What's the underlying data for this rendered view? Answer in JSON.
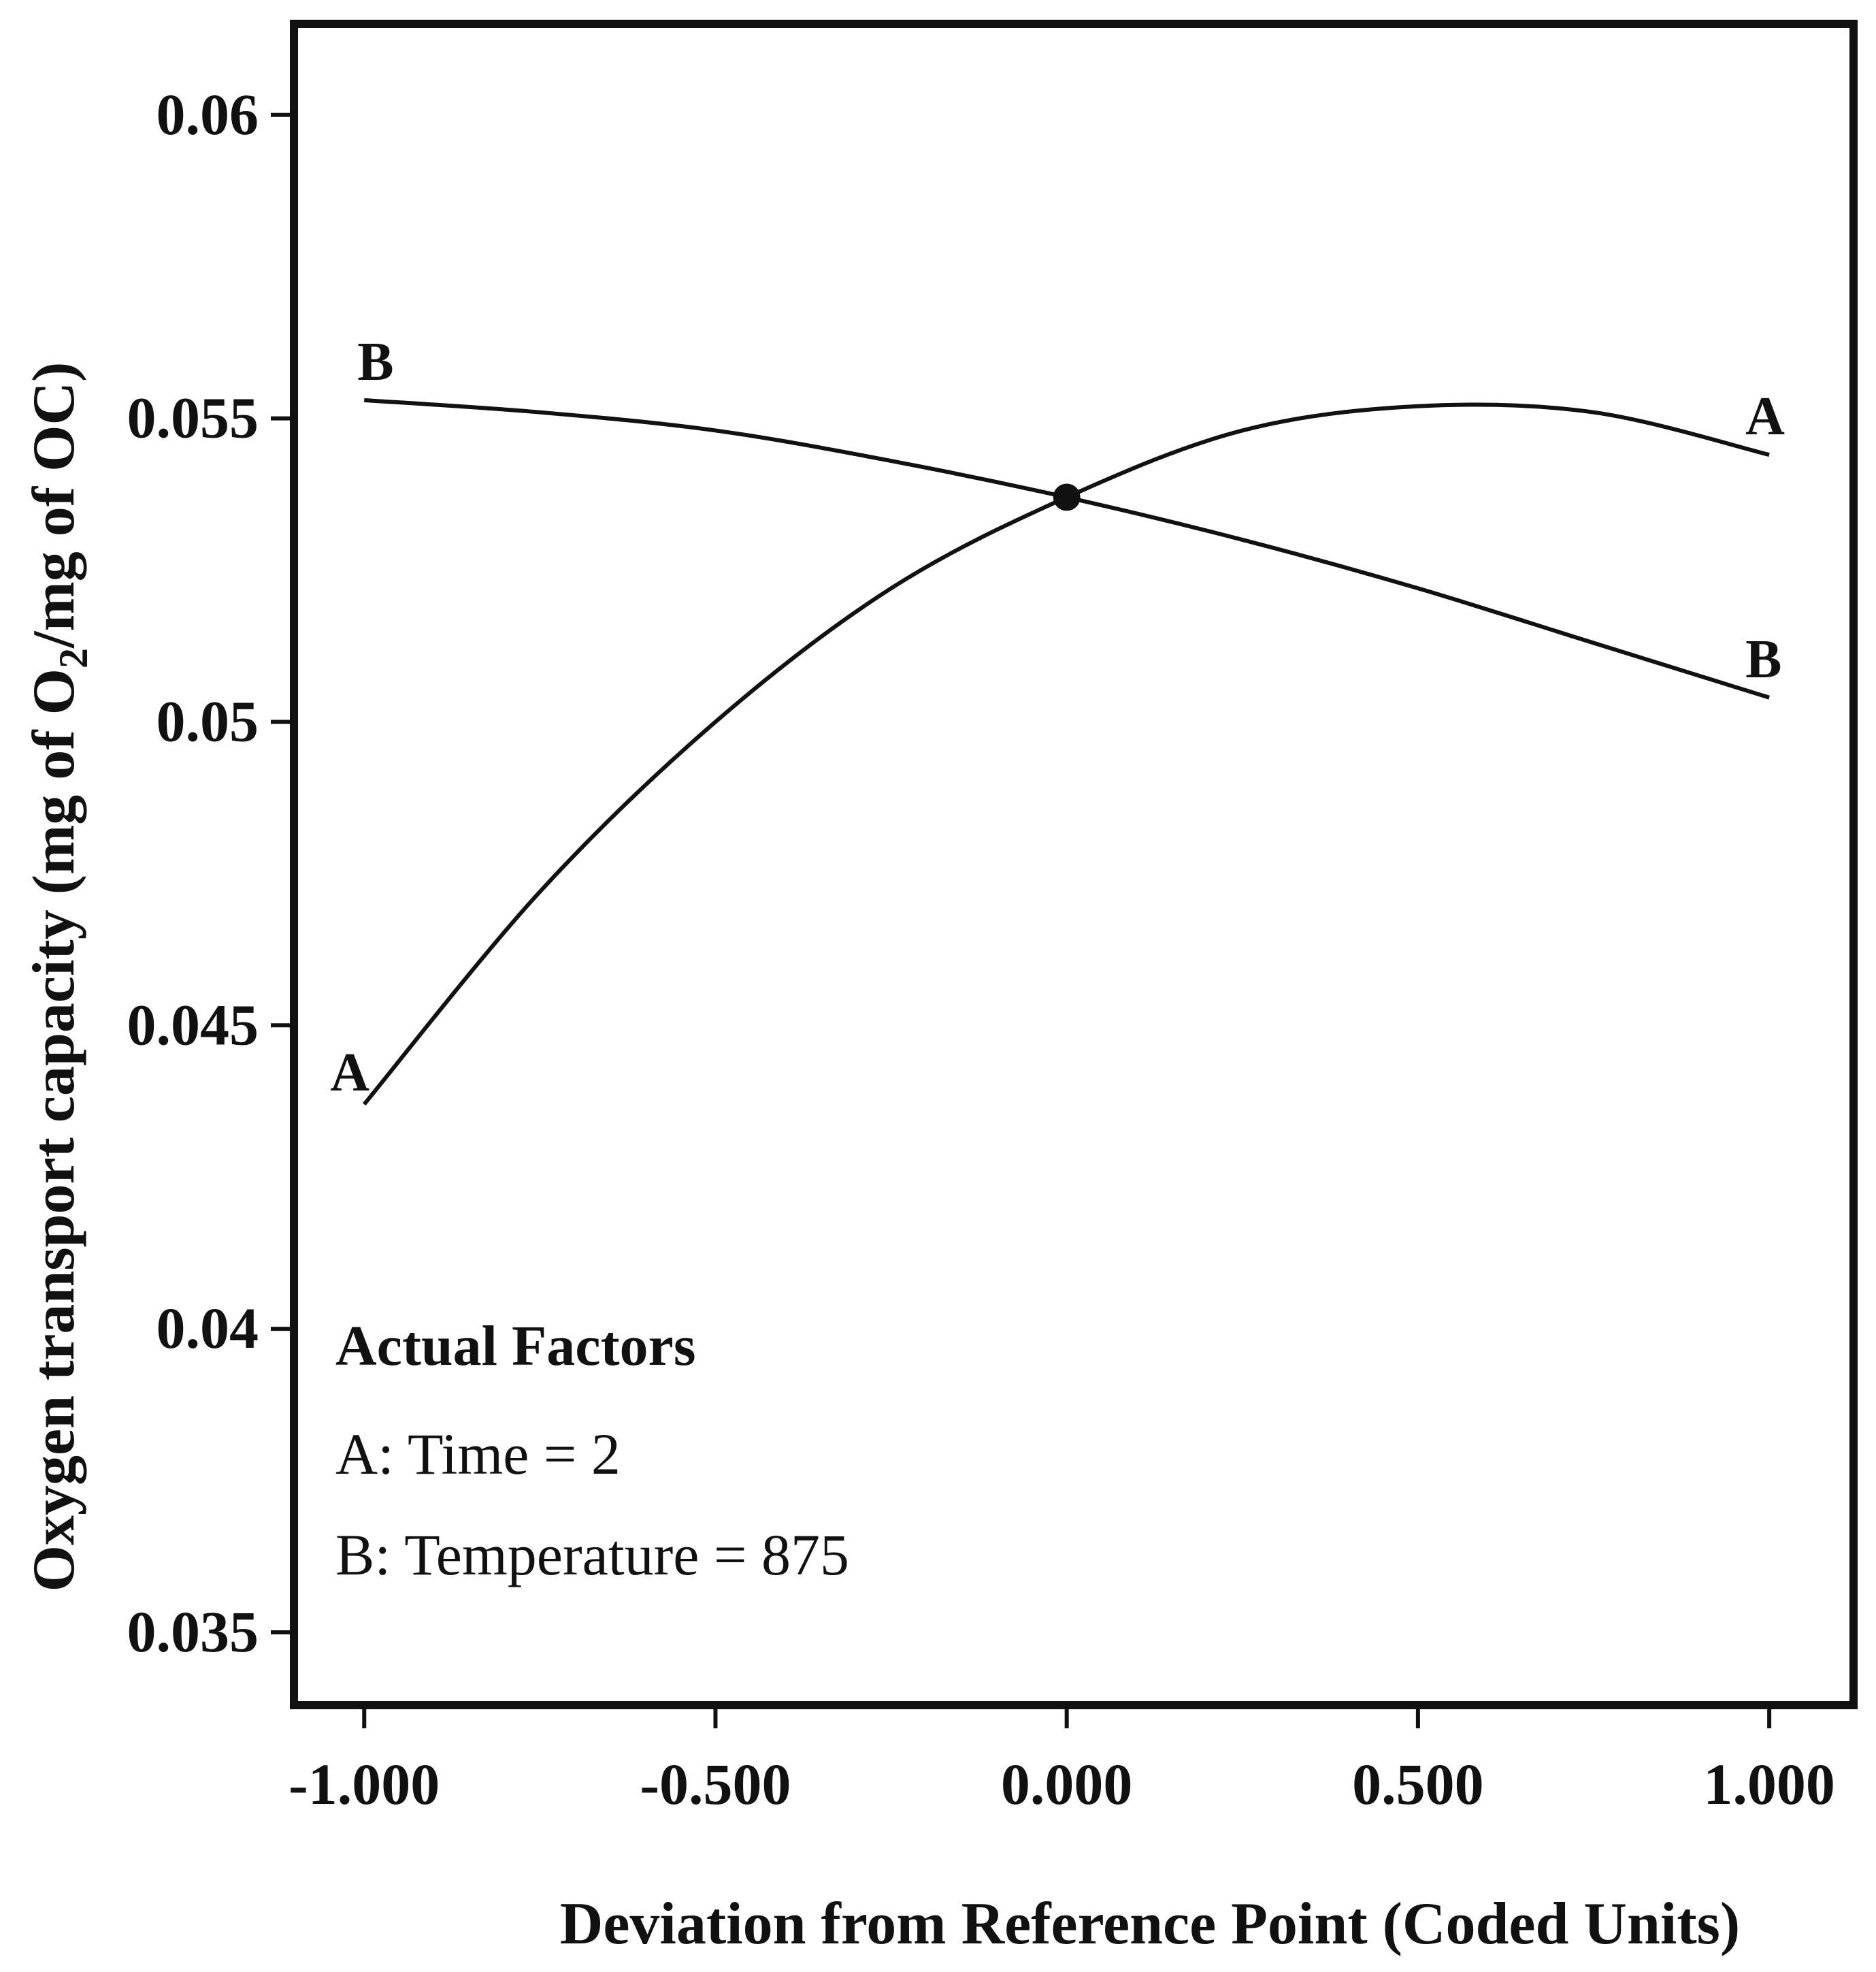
{
  "chart_data": {
    "type": "line",
    "title": "",
    "xlabel": "Deviation from Reference Point (Coded Units)",
    "ylabel_parts": [
      "Oxygen transport capacity (mg of O",
      "2",
      "/mg of OC)"
    ],
    "xlim": [
      -1.1,
      1.12
    ],
    "ylim": [
      0.0338,
      0.0615
    ],
    "x_ticks": [
      -1.0,
      -0.5,
      0.0,
      0.5,
      1.0
    ],
    "x_tick_labels": [
      "-1.000",
      "-0.500",
      "0.000",
      "0.500",
      "1.000"
    ],
    "y_ticks": [
      0.035,
      0.04,
      0.045,
      0.05,
      0.055,
      0.06
    ],
    "y_tick_labels": [
      "0.035",
      "0.04",
      "0.045",
      "0.05",
      "0.055",
      "0.06"
    ],
    "grid": false,
    "series": [
      {
        "name": "A",
        "x": [
          -1.0,
          -0.75,
          -0.5,
          -0.25,
          0.0,
          0.25,
          0.5,
          0.75,
          1.0
        ],
        "values": [
          0.0437,
          0.0472,
          0.05,
          0.0522,
          0.0537,
          0.0548,
          0.0552,
          0.0551,
          0.0544
        ]
      },
      {
        "name": "B",
        "x": [
          -1.0,
          -0.75,
          -0.5,
          -0.25,
          0.0,
          0.25,
          0.5,
          0.75,
          1.0
        ],
        "values": [
          0.0553,
          0.0551,
          0.0548,
          0.0543,
          0.0537,
          0.053,
          0.0522,
          0.0513,
          0.0504
        ]
      }
    ],
    "reference_point": {
      "x": 0.0,
      "y": 0.0537
    },
    "annotation": {
      "title": "Actual Factors",
      "lines": [
        "A: Time = 2",
        "B: Temperature = 875"
      ]
    }
  }
}
